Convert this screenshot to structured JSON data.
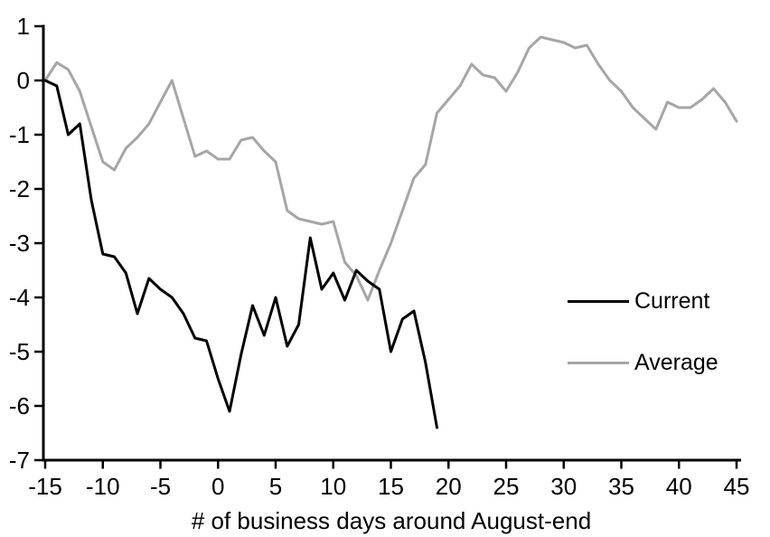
{
  "chart_data": {
    "type": "line",
    "title": "",
    "xlabel": "# of business days around August-end",
    "ylabel": "",
    "xlim": [
      -15,
      45
    ],
    "ylim": [
      -7,
      1
    ],
    "x_ticks": [
      -15,
      -10,
      -5,
      0,
      5,
      10,
      15,
      20,
      25,
      30,
      35,
      40,
      45
    ],
    "y_ticks": [
      1,
      0,
      -1,
      -2,
      -3,
      -4,
      -5,
      -6,
      -7
    ],
    "grid": false,
    "legend_position": "center-right",
    "axis_color": "#000000",
    "background_color": "#ffffff",
    "series": [
      {
        "name": "Current",
        "color": "#000000",
        "x_start": -15,
        "x_step": 1,
        "values": [
          0,
          -0.1,
          -1.0,
          -0.8,
          -2.2,
          -3.2,
          -3.25,
          -3.55,
          -4.3,
          -3.65,
          -3.85,
          -4.0,
          -4.3,
          -4.75,
          -4.8,
          -5.5,
          -6.1,
          -5.05,
          -4.15,
          -4.7,
          -4.0,
          -4.9,
          -4.5,
          -2.9,
          -3.85,
          -3.55,
          -4.05,
          -3.5,
          -3.7,
          -3.85,
          -5.0,
          -4.4,
          -4.25,
          -5.2,
          -6.4
        ]
      },
      {
        "name": "Average",
        "color": "#a6a6a6",
        "x_start": -15,
        "x_step": 1,
        "values": [
          0,
          0.33,
          0.2,
          -0.2,
          -0.85,
          -1.5,
          -1.65,
          -1.25,
          -1.05,
          -0.8,
          -0.4,
          0.0,
          -0.7,
          -1.4,
          -1.3,
          -1.45,
          -1.45,
          -1.1,
          -1.05,
          -1.3,
          -1.5,
          -2.4,
          -2.55,
          -2.6,
          -2.65,
          -2.6,
          -3.35,
          -3.6,
          -4.05,
          -3.5,
          -3.0,
          -2.4,
          -1.8,
          -1.55,
          -0.6,
          -0.35,
          -0.1,
          0.3,
          0.1,
          0.05,
          -0.2,
          0.15,
          0.6,
          0.8,
          0.75,
          0.7,
          0.6,
          0.65,
          0.3,
          0.0,
          -0.2,
          -0.5,
          -0.7,
          -0.9,
          -0.4,
          -0.5,
          -0.5,
          -0.35,
          -0.15,
          -0.4,
          -0.75
        ]
      }
    ]
  }
}
